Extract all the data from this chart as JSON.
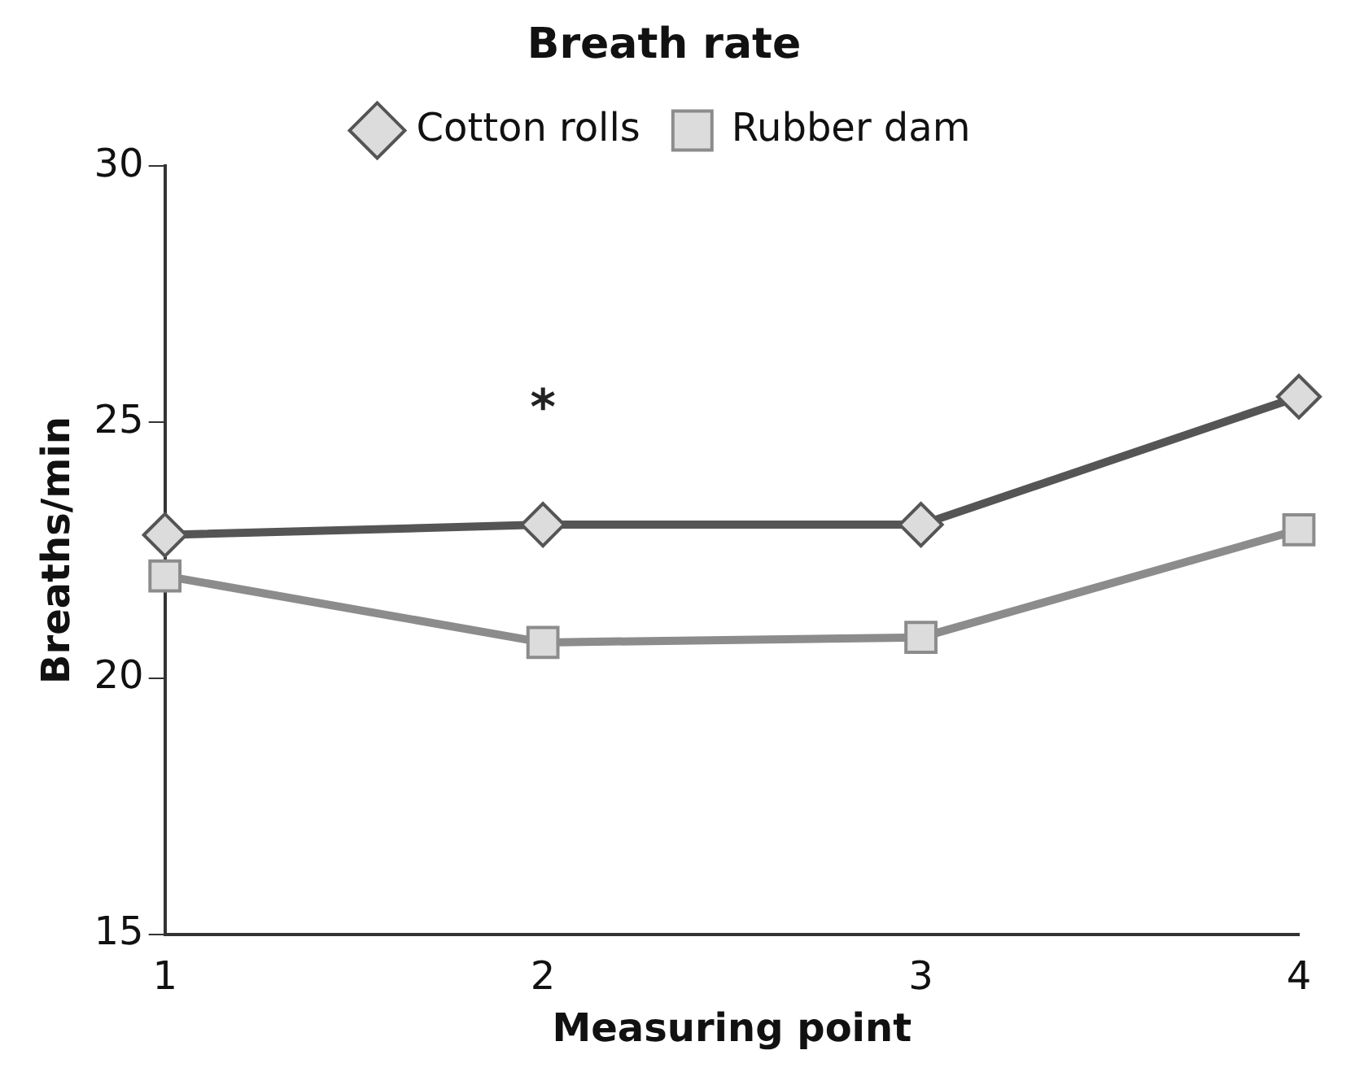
{
  "chart_data": {
    "type": "line",
    "title": "Breath rate",
    "xlabel": "Measuring point",
    "ylabel": "Breaths/min",
    "categories": [
      "1",
      "2",
      "3",
      "4"
    ],
    "series": [
      {
        "name": "Cotton rolls",
        "color": "#555555",
        "values": [
          22.8,
          23.0,
          23.0,
          25.5
        ],
        "marker": "diamond"
      },
      {
        "name": "Rubber dam",
        "color": "#8c8c8c",
        "values": [
          22.0,
          20.7,
          20.8,
          22.9
        ],
        "marker": "square"
      }
    ],
    "ylim": [
      15,
      30
    ],
    "yticks": [
      15,
      20,
      25,
      30
    ],
    "grid": false,
    "legend": "top",
    "line_style": "solid",
    "annotations": [
      "*"
    ]
  }
}
